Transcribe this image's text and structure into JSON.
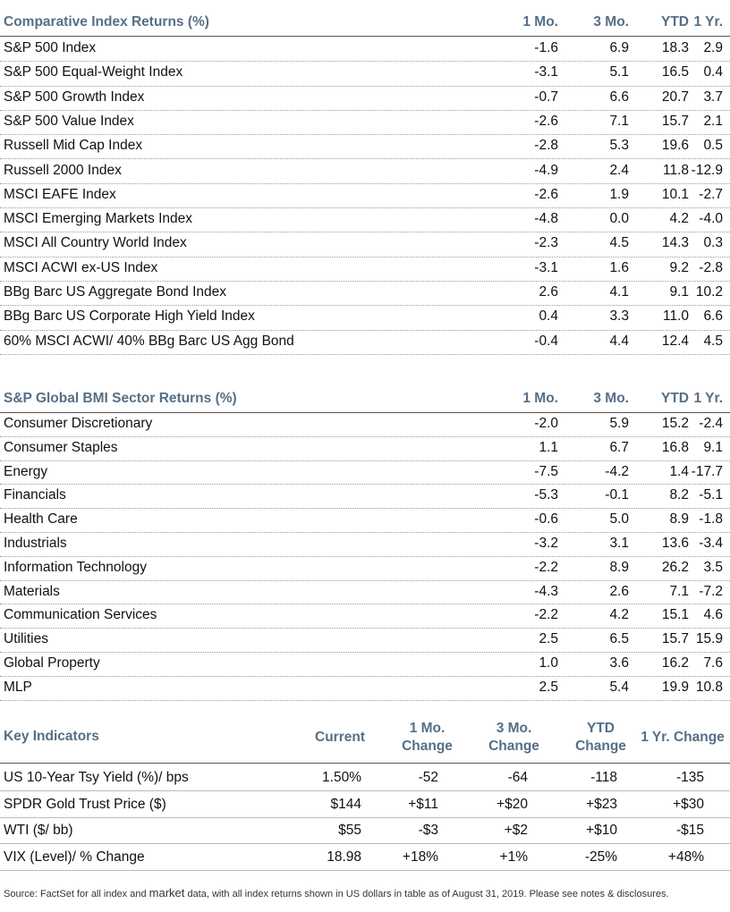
{
  "section1": {
    "title": "Comparative Index Returns (%)",
    "columns": [
      "1 Mo.",
      "3 Mo.",
      "YTD",
      "1 Yr."
    ],
    "rows": [
      {
        "name": "S&P 500 Index",
        "values": [
          "-1.6",
          "6.9",
          "18.3",
          "2.9"
        ]
      },
      {
        "name": "S&P 500 Equal-Weight Index",
        "values": [
          "-3.1",
          "5.1",
          "16.5",
          "0.4"
        ]
      },
      {
        "name": "S&P 500 Growth Index",
        "values": [
          "-0.7",
          "6.6",
          "20.7",
          "3.7"
        ]
      },
      {
        "name": "S&P 500 Value Index",
        "values": [
          "-2.6",
          "7.1",
          "15.7",
          "2.1"
        ]
      },
      {
        "name": "Russell Mid Cap Index",
        "values": [
          "-2.8",
          "5.3",
          "19.6",
          "0.5"
        ]
      },
      {
        "name": "Russell 2000 Index",
        "values": [
          "-4.9",
          "2.4",
          "11.8",
          "-12.9"
        ]
      },
      {
        "name": "MSCI EAFE Index",
        "values": [
          "-2.6",
          "1.9",
          "10.1",
          "-2.7"
        ]
      },
      {
        "name": "MSCI Emerging Markets Index",
        "values": [
          "-4.8",
          "0.0",
          "4.2",
          "-4.0"
        ]
      },
      {
        "name": "MSCI All Country World Index",
        "values": [
          "-2.3",
          "4.5",
          "14.3",
          "0.3"
        ]
      },
      {
        "name": "MSCI ACWI ex-US Index",
        "values": [
          "-3.1",
          "1.6",
          "9.2",
          "-2.8"
        ]
      },
      {
        "name": "BBg Barc US Aggregate Bond Index",
        "values": [
          "2.6",
          "4.1",
          "9.1",
          "10.2"
        ]
      },
      {
        "name": "BBg Barc US Corporate High Yield Index",
        "values": [
          "0.4",
          "3.3",
          "11.0",
          "6.6"
        ]
      },
      {
        "name": "60% MSCI ACWI/ 40% BBg Barc US Agg Bond",
        "values": [
          "-0.4",
          "4.4",
          "12.4",
          "4.5"
        ]
      }
    ]
  },
  "section2": {
    "title": "S&P Global BMI Sector Returns (%)",
    "columns": [
      "1 Mo.",
      "3 Mo.",
      "YTD",
      "1 Yr."
    ],
    "rows": [
      {
        "name": "Consumer Discretionary",
        "values": [
          "-2.0",
          "5.9",
          "15.2",
          "-2.4"
        ]
      },
      {
        "name": "Consumer Staples",
        "values": [
          "1.1",
          "6.7",
          "16.8",
          "9.1"
        ]
      },
      {
        "name": "Energy",
        "values": [
          "-7.5",
          "-4.2",
          "1.4",
          "-17.7"
        ]
      },
      {
        "name": "Financials",
        "values": [
          "-5.3",
          "-0.1",
          "8.2",
          "-5.1"
        ]
      },
      {
        "name": "Health Care",
        "values": [
          "-0.6",
          "5.0",
          "8.9",
          "-1.8"
        ]
      },
      {
        "name": "Industrials",
        "values": [
          "-3.2",
          "3.1",
          "13.6",
          "-3.4"
        ]
      },
      {
        "name": "Information Technology",
        "values": [
          "-2.2",
          "8.9",
          "26.2",
          "3.5"
        ]
      },
      {
        "name": "Materials",
        "values": [
          "-4.3",
          "2.6",
          "7.1",
          "-7.2"
        ]
      },
      {
        "name": "Communication Services",
        "values": [
          "-2.2",
          "4.2",
          "15.1",
          "4.6"
        ]
      },
      {
        "name": "Utilities",
        "values": [
          "2.5",
          "6.5",
          "15.7",
          "15.9"
        ]
      },
      {
        "name": "Global Property",
        "values": [
          "1.0",
          "3.6",
          "16.2",
          "7.6"
        ]
      },
      {
        "name": "MLP",
        "values": [
          "2.5",
          "5.4",
          "19.9",
          "10.8"
        ]
      }
    ]
  },
  "section3": {
    "title": "Key Indicators",
    "columns": [
      {
        "line1": "Current",
        "line2": ""
      },
      {
        "line1": "1 Mo.",
        "line2": "Change"
      },
      {
        "line1": "3 Mo.",
        "line2": "Change"
      },
      {
        "line1": "YTD",
        "line2": "Change"
      },
      {
        "line1": "1 Yr. Change",
        "line2": ""
      }
    ],
    "rows": [
      {
        "name": "US 10-Year Tsy Yield (%)/ bps",
        "values": [
          "1.50%",
          "-52",
          "-64",
          "-118",
          "-135"
        ]
      },
      {
        "name": "SPDR Gold Trust Price ($)",
        "values": [
          "$144",
          "+$11",
          "+$20",
          "+$23",
          "+$30"
        ]
      },
      {
        "name": "WTI ($/ bb)",
        "values": [
          "$55",
          "-$3",
          "+$2",
          "+$10",
          "-$15"
        ]
      },
      {
        "name": "VIX (Level)/ % Change",
        "values": [
          "18.98",
          "+18%",
          "+1%",
          "-25%",
          "+48%"
        ]
      }
    ]
  },
  "footer": {
    "before": "Source: FactSet for all index and ",
    "market": "market",
    "after": " data, with all index returns shown in US dollars in table as of August 31, 2019. Please see notes & disclosures."
  }
}
